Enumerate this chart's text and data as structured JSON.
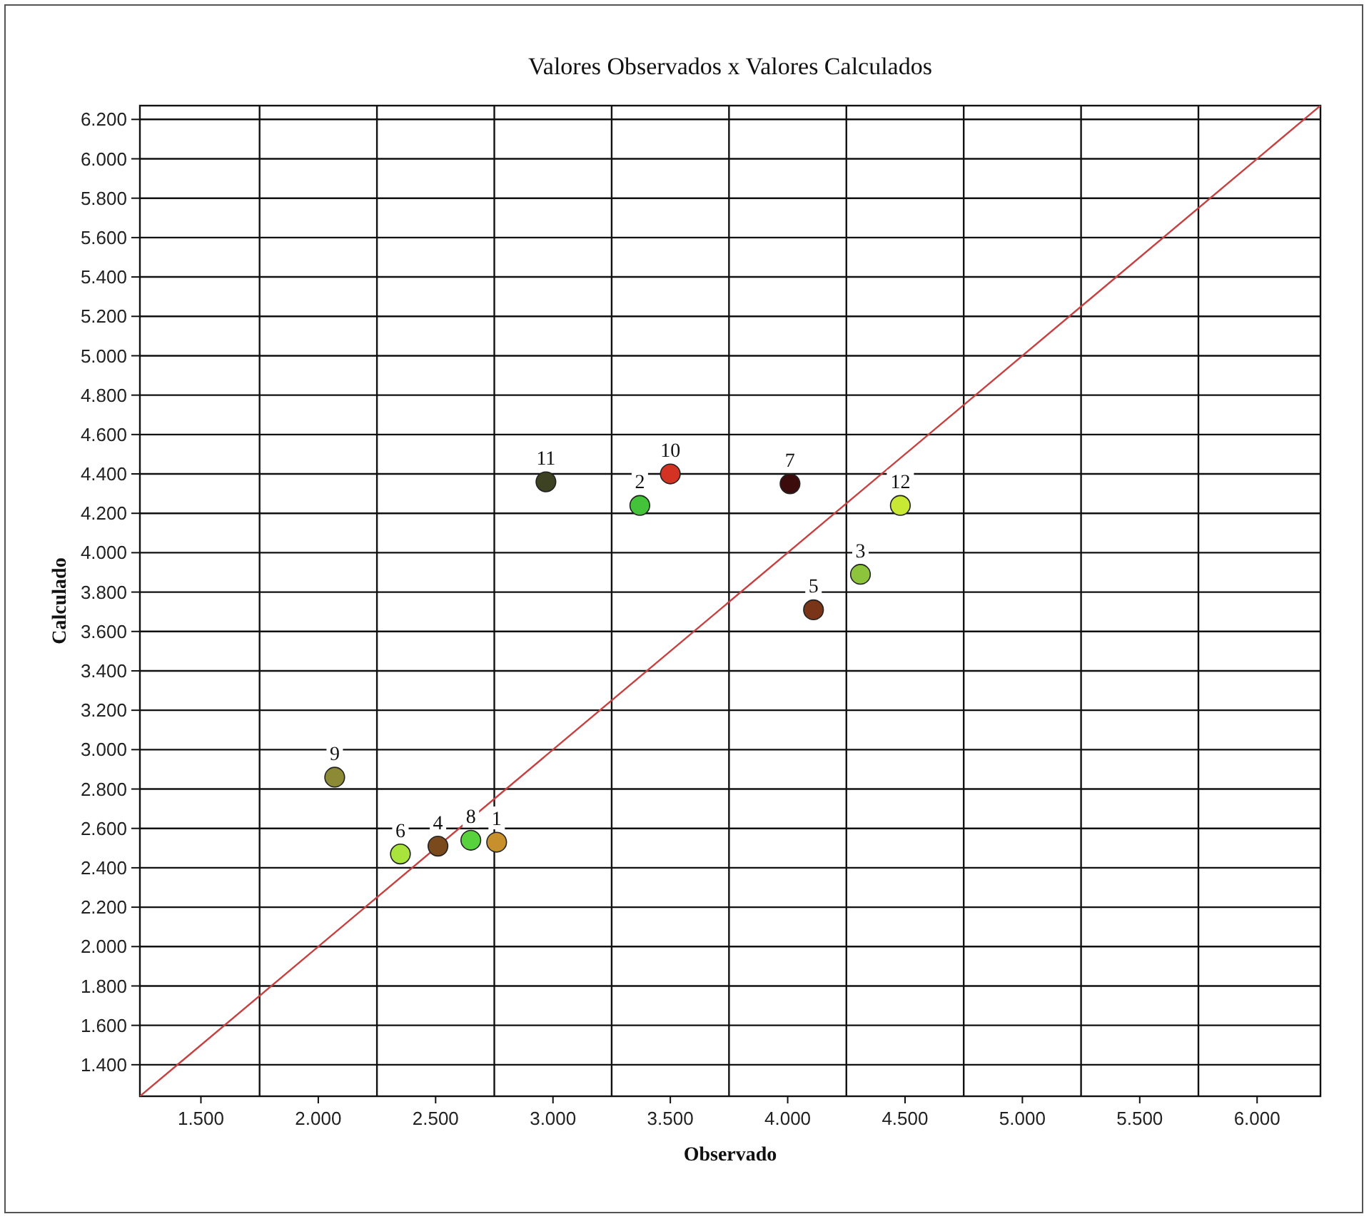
{
  "chart_data": {
    "type": "scatter",
    "title": "Valores Observados x Valores Calculados",
    "xlabel": "Observado",
    "ylabel": "Calculado",
    "xlim": [
      1.24,
      6.27
    ],
    "ylim": [
      1.24,
      6.27
    ],
    "xticks": [
      {
        "value": 1.5,
        "label": "1.500"
      },
      {
        "value": 1.75,
        "label": null
      },
      {
        "value": 2,
        "label": "2.000"
      },
      {
        "value": 2.25,
        "label": null
      },
      {
        "value": 2.5,
        "label": "2.500"
      },
      {
        "value": 2.75,
        "label": null
      },
      {
        "value": 3,
        "label": "3.000"
      },
      {
        "value": 3.25,
        "label": null
      },
      {
        "value": 3.5,
        "label": "3.500"
      },
      {
        "value": 3.75,
        "label": null
      },
      {
        "value": 4,
        "label": "4.000"
      },
      {
        "value": 4.25,
        "label": null
      },
      {
        "value": 4.5,
        "label": "4.500"
      },
      {
        "value": 4.75,
        "label": null
      },
      {
        "value": 5,
        "label": "5.000"
      },
      {
        "value": 5.25,
        "label": null
      },
      {
        "value": 5.5,
        "label": "5.500"
      },
      {
        "value": 5.75,
        "label": null
      },
      {
        "value": 6,
        "label": "6.000"
      }
    ],
    "yticks": [
      {
        "value": 1.4,
        "label": "1.400"
      },
      {
        "value": 1.6,
        "label": "1.600"
      },
      {
        "value": 1.8,
        "label": "1.800"
      },
      {
        "value": 2,
        "label": "2.000"
      },
      {
        "value": 2.2,
        "label": "2.200"
      },
      {
        "value": 2.4,
        "label": "2.400"
      },
      {
        "value": 2.6,
        "label": "2.600"
      },
      {
        "value": 2.8,
        "label": "2.800"
      },
      {
        "value": 3,
        "label": "3.000"
      },
      {
        "value": 3.2,
        "label": "3.200"
      },
      {
        "value": 3.4,
        "label": "3.400"
      },
      {
        "value": 3.6,
        "label": "3.600"
      },
      {
        "value": 3.8,
        "label": "3.800"
      },
      {
        "value": 4,
        "label": "4.000"
      },
      {
        "value": 4.2,
        "label": "4.200"
      },
      {
        "value": 4.4,
        "label": "4.400"
      },
      {
        "value": 4.6,
        "label": "4.600"
      },
      {
        "value": 4.8,
        "label": "4.800"
      },
      {
        "value": 5,
        "label": "5.000"
      },
      {
        "value": 5.2,
        "label": "5.200"
      },
      {
        "value": 5.4,
        "label": "5.400"
      },
      {
        "value": 5.6,
        "label": "5.600"
      },
      {
        "value": 5.8,
        "label": "5.800"
      },
      {
        "value": 6,
        "label": "6.000"
      },
      {
        "value": 6.2,
        "label": "6.200"
      }
    ],
    "grid": true,
    "marker": "circle",
    "series": [
      {
        "type": "line",
        "marker": "none",
        "color": "#c84040",
        "x": [
          1.24,
          6.27
        ],
        "values": [
          1.24,
          6.27
        ]
      },
      {
        "name": "1",
        "color": "#c8902c",
        "x": [
          2.76
        ],
        "values": [
          2.53
        ]
      },
      {
        "name": "2",
        "color": "#44c23a",
        "x": [
          3.37
        ],
        "values": [
          4.24
        ]
      },
      {
        "name": "3",
        "color": "#8cc43c",
        "x": [
          4.31
        ],
        "values": [
          3.89
        ]
      },
      {
        "name": "4",
        "color": "#7b4a1c",
        "x": [
          2.51
        ],
        "values": [
          2.51
        ]
      },
      {
        "name": "5",
        "color": "#7a3418",
        "x": [
          4.11
        ],
        "values": [
          3.71
        ]
      },
      {
        "name": "6",
        "color": "#a8e43c",
        "x": [
          2.35
        ],
        "values": [
          2.47
        ]
      },
      {
        "name": "7",
        "color": "#3c0c0c",
        "x": [
          4.01
        ],
        "values": [
          4.35
        ]
      },
      {
        "name": "8",
        "color": "#58d23c",
        "x": [
          2.65
        ],
        "values": [
          2.54
        ]
      },
      {
        "name": "9",
        "color": "#8c8a34",
        "x": [
          2.07
        ],
        "values": [
          2.86
        ]
      },
      {
        "name": "10",
        "color": "#d43222",
        "x": [
          3.5
        ],
        "values": [
          4.4
        ]
      },
      {
        "name": "11",
        "color": "#3c4222",
        "x": [
          2.97
        ],
        "values": [
          4.36
        ]
      },
      {
        "name": "12",
        "color": "#c8e834",
        "x": [
          4.48
        ],
        "values": [
          4.24
        ]
      }
    ]
  }
}
